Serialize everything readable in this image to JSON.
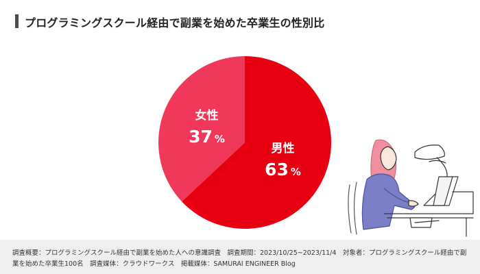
{
  "header": {
    "title": "プログラミングスクール経由で副業を始めた卒業生の性別比"
  },
  "chart_data": {
    "type": "pie",
    "title": "プログラミングスクール経由で副業を始めた卒業生の性別比",
    "slices": [
      {
        "label": "男性",
        "value": 63,
        "unit": "%",
        "color": "#e60012"
      },
      {
        "label": "女性",
        "value": 37,
        "unit": "%",
        "color": "#f0385a"
      }
    ],
    "start": "top",
    "direction": "clockwise"
  },
  "footer": {
    "note": "調査概要：プログラミングスクール経由で副業を始めた人への意識調査　調査期間：2023/10/25~2023/11/4　対象者：プログラミングスクール経由で副業を始めた卒業生100名　調査媒体：クラウドワークス　掲載媒体：SAMURAI ENGINEER Blog"
  },
  "colors": {
    "accent": "#e60012",
    "secondary": "#f0385a",
    "illustration_shirt": "#7b7fc8",
    "illustration_hair": "#ef8fa0"
  },
  "illustration": {
    "icon": "woman-at-laptop-illustration"
  }
}
